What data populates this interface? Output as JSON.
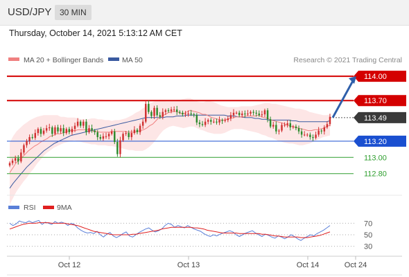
{
  "header": {
    "symbol": "USD/JPY",
    "timeframe": "30 MIN",
    "timestamp": "Thursday, October 14, 2021 5:13:12 AM CET"
  },
  "legend": {
    "bb_label": "MA 20 + Bollinger Bands",
    "ma50_label": "MA 50",
    "credit": "Research © 2021 Trading Central"
  },
  "colors": {
    "resistance": "#d40000",
    "support": "#1a4fd0",
    "target": "#2e9e2e",
    "ma20": "#f08080",
    "ma50": "#3a5aa0",
    "bollinger_fill": "#fde6e6",
    "rsi": "#5a7fd8",
    "rsi_ma": "#e02020",
    "arrow": "#2e5faa",
    "candle_up": "#d03030",
    "candle_down": "#2c8a2c"
  },
  "chart_data": [
    {
      "type": "candlestick",
      "instrument": "USD/JPY",
      "timeframe": "30 MIN",
      "ylim": [
        112.55,
        114.12
      ],
      "x_ticks": [
        "Oct 12",
        "Oct 13",
        "Oct 14",
        "Oct 24"
      ],
      "levels": [
        {
          "value": 114.0,
          "label": "114.00",
          "kind": "resistance"
        },
        {
          "value": 113.7,
          "label": "113.70",
          "kind": "resistance"
        },
        {
          "value": 113.49,
          "label": "113.49",
          "kind": "last"
        },
        {
          "value": 113.2,
          "label": "113.20",
          "kind": "support"
        },
        {
          "value": 113.0,
          "label": "113.00",
          "kind": "target"
        },
        {
          "value": 112.8,
          "label": "112.80",
          "kind": "target"
        }
      ],
      "close": [
        112.93,
        112.96,
        112.99,
        112.95,
        113.06,
        113.15,
        113.2,
        113.25,
        113.24,
        113.3,
        113.35,
        113.29,
        113.33,
        113.36,
        113.37,
        113.29,
        113.37,
        113.32,
        113.36,
        113.3,
        113.35,
        113.31,
        113.35,
        113.39,
        113.44,
        113.39,
        113.44,
        113.31,
        113.36,
        113.33,
        113.31,
        113.25,
        113.23,
        113.26,
        113.26,
        113.29,
        113.32,
        113.19,
        113.04,
        113.21,
        113.29,
        113.3,
        113.25,
        113.3,
        113.34,
        113.31,
        113.39,
        113.44,
        113.66,
        113.56,
        113.51,
        113.61,
        113.52,
        113.5,
        113.56,
        113.58,
        113.57,
        113.59,
        113.59,
        113.56,
        113.55,
        113.53,
        113.54,
        113.54,
        113.53,
        113.52,
        113.43,
        113.41,
        113.4,
        113.44,
        113.46,
        113.44,
        113.44,
        113.43,
        113.46,
        113.45,
        113.46,
        113.48,
        113.52,
        113.55,
        113.55,
        113.52,
        113.54,
        113.53,
        113.54,
        113.56,
        113.55,
        113.54,
        113.52,
        113.53,
        113.58,
        113.47,
        113.38,
        113.4,
        113.32,
        113.33,
        113.4,
        113.4,
        113.42,
        113.37,
        113.38,
        113.36,
        113.32,
        113.28,
        113.28,
        113.28,
        113.25,
        113.24,
        113.28,
        113.33,
        113.32,
        113.37,
        113.41,
        113.5
      ],
      "ma20": [
        112.81,
        112.87,
        112.93,
        112.97,
        113.0,
        113.04,
        113.08,
        113.11,
        113.14,
        113.16,
        113.19,
        113.21,
        113.23,
        113.26,
        113.27,
        113.29,
        113.29,
        113.3,
        113.31,
        113.33,
        113.33,
        113.33,
        113.34,
        113.34,
        113.34,
        113.34,
        113.34,
        113.32,
        113.32,
        113.31,
        113.31,
        113.31,
        113.31,
        113.32,
        113.32,
        113.32,
        113.32,
        113.32,
        113.31,
        113.31,
        113.31,
        113.32,
        113.33,
        113.34,
        113.36,
        113.39,
        113.41,
        113.45,
        113.49,
        113.51,
        113.53,
        113.55,
        113.56,
        113.57,
        113.56,
        113.54,
        113.54,
        113.56,
        113.58,
        113.57,
        113.56,
        113.55,
        113.53,
        113.53,
        113.51,
        113.49,
        113.48,
        113.47,
        113.46,
        113.46,
        113.47,
        113.48,
        113.49,
        113.5,
        113.5,
        113.5,
        113.51,
        113.51,
        113.51,
        113.51,
        113.52,
        113.5,
        113.49,
        113.48,
        113.46,
        113.45,
        113.44,
        113.43,
        113.42,
        113.4,
        113.39,
        113.38,
        113.37,
        113.36,
        113.35,
        113.34,
        113.33,
        113.33,
        113.34,
        113.34,
        113.35,
        113.36,
        113.38,
        113.4
      ],
      "bb_upper": [
        113.18,
        113.26,
        113.32,
        113.36,
        113.4,
        113.43,
        113.46,
        113.48,
        113.5,
        113.51,
        113.52,
        113.52,
        113.52,
        113.52,
        113.52,
        113.5,
        113.5,
        113.49,
        113.49,
        113.49,
        113.48,
        113.47,
        113.47,
        113.47,
        113.48,
        113.48,
        113.47,
        113.47,
        113.46,
        113.46,
        113.45,
        113.46,
        113.46,
        113.47,
        113.48,
        113.5,
        113.52,
        113.55,
        113.57,
        113.6,
        113.63,
        113.66,
        113.68,
        113.7,
        113.71,
        113.7,
        113.69,
        113.69,
        113.7,
        113.71,
        113.71,
        113.72,
        113.73,
        113.73,
        113.71,
        113.69,
        113.68,
        113.68,
        113.7,
        113.69,
        113.68,
        113.66,
        113.64,
        113.63,
        113.62,
        113.62,
        113.62,
        113.62,
        113.63,
        113.63,
        113.63,
        113.63,
        113.64,
        113.65,
        113.66,
        113.67,
        113.67,
        113.66,
        113.66,
        113.65,
        113.64,
        113.63,
        113.62,
        113.61,
        113.6,
        113.6,
        113.59,
        113.58,
        113.56,
        113.55,
        113.54,
        113.53,
        113.52,
        113.52,
        113.53
      ],
      "bb_lower": [
        112.42,
        112.5,
        112.58,
        112.64,
        112.7,
        112.75,
        112.81,
        112.86,
        112.92,
        112.97,
        113.02,
        113.06,
        113.09,
        113.12,
        113.14,
        113.16,
        113.18,
        113.19,
        113.2,
        113.21,
        113.2,
        113.19,
        113.18,
        113.17,
        113.16,
        113.16,
        113.15,
        113.15,
        113.15,
        113.14,
        113.14,
        113.13,
        113.12,
        113.11,
        113.1,
        113.09,
        113.09,
        113.08,
        113.08,
        113.08,
        113.1,
        113.13,
        113.17,
        113.22,
        113.28,
        113.33,
        113.36,
        113.38,
        113.39,
        113.38,
        113.37,
        113.36,
        113.37,
        113.38,
        113.38,
        113.36,
        113.34,
        113.33,
        113.31,
        113.3,
        113.29,
        113.29,
        113.29,
        113.3,
        113.32,
        113.34,
        113.35,
        113.35,
        113.35,
        113.34,
        113.33,
        113.32,
        113.31,
        113.3,
        113.28,
        113.27,
        113.25,
        113.24,
        113.22,
        113.2,
        113.19,
        113.18,
        113.17,
        113.17,
        113.16,
        113.15,
        113.15,
        113.16,
        113.17,
        113.19,
        113.21,
        113.23,
        113.25,
        113.26,
        113.27
      ],
      "ma50": [
        112.62,
        112.68,
        112.73,
        112.78,
        112.83,
        112.88,
        112.92,
        112.96,
        113.0,
        113.04,
        113.08,
        113.11,
        113.14,
        113.17,
        113.19,
        113.21,
        113.23,
        113.25,
        113.27,
        113.28,
        113.29,
        113.3,
        113.31,
        113.32,
        113.33,
        113.34,
        113.35,
        113.36,
        113.37,
        113.38,
        113.39,
        113.4,
        113.41,
        113.42,
        113.43,
        113.44,
        113.45,
        113.46,
        113.47,
        113.48,
        113.49,
        113.49,
        113.49,
        113.49,
        113.49,
        113.49,
        113.5,
        113.5,
        113.5,
        113.51,
        113.51,
        113.51,
        113.52,
        113.52,
        113.52,
        113.52,
        113.52,
        113.52,
        113.52,
        113.52,
        113.52,
        113.52,
        113.52,
        113.52,
        113.51,
        113.51,
        113.51,
        113.5,
        113.5,
        113.49,
        113.49,
        113.49,
        113.48,
        113.48,
        113.47,
        113.47,
        113.46,
        113.46,
        113.46,
        113.46,
        113.46,
        113.46,
        113.46,
        113.45,
        113.45,
        113.44,
        113.44,
        113.44,
        113.44,
        113.44,
        113.44,
        113.44,
        113.44,
        113.44,
        113.45
      ],
      "forecast_arrow": {
        "from": 113.49,
        "to": 114.0
      }
    },
    {
      "type": "line",
      "name": "RSI",
      "series": [
        {
          "name": "RSI",
          "values": [
            70,
            66,
            69,
            74,
            72,
            71,
            74,
            71,
            73,
            75,
            68,
            72,
            70,
            68,
            73,
            70,
            72,
            70,
            66,
            70,
            68,
            62,
            58,
            55,
            53,
            54,
            52,
            56,
            50,
            46,
            51,
            54,
            48,
            45,
            48,
            52,
            55,
            48,
            46,
            50,
            54,
            57,
            60,
            62,
            58,
            55,
            57,
            60,
            66,
            70,
            68,
            63,
            66,
            64,
            62,
            66,
            63,
            60,
            58,
            56,
            52,
            49,
            47,
            50,
            48,
            51,
            53,
            55,
            57,
            55,
            50,
            47,
            50,
            53,
            55,
            57,
            53,
            50,
            47,
            51,
            49,
            46,
            44,
            48,
            46,
            43,
            46,
            50,
            47,
            43,
            40,
            44,
            47,
            50,
            48,
            52,
            55,
            58,
            62,
            66
          ]
        },
        {
          "name": "9MA",
          "values": [
            60,
            62,
            64,
            66,
            68,
            69,
            70,
            70,
            70,
            71,
            71,
            71,
            71,
            70,
            70,
            70,
            70,
            70,
            69,
            68,
            67,
            66,
            64,
            62,
            60,
            58,
            56,
            55,
            54,
            53,
            52,
            51,
            50,
            50,
            50,
            50,
            50,
            50,
            51,
            51,
            52,
            53,
            54,
            55,
            56,
            57,
            58,
            60,
            61,
            62,
            63,
            63,
            63,
            63,
            63,
            63,
            63,
            62,
            62,
            61,
            60,
            58,
            57,
            56,
            55,
            54,
            53,
            53,
            53,
            53,
            53,
            52,
            52,
            52,
            52,
            52,
            52,
            52,
            51,
            51,
            50,
            49,
            48,
            48,
            47,
            46,
            46,
            46,
            46,
            46,
            45,
            45,
            45,
            46,
            47,
            48,
            49,
            51,
            53,
            55
          ]
        }
      ],
      "y_ticks": [
        70,
        50,
        30
      ],
      "legend": [
        "RSI",
        "9MA"
      ]
    }
  ]
}
